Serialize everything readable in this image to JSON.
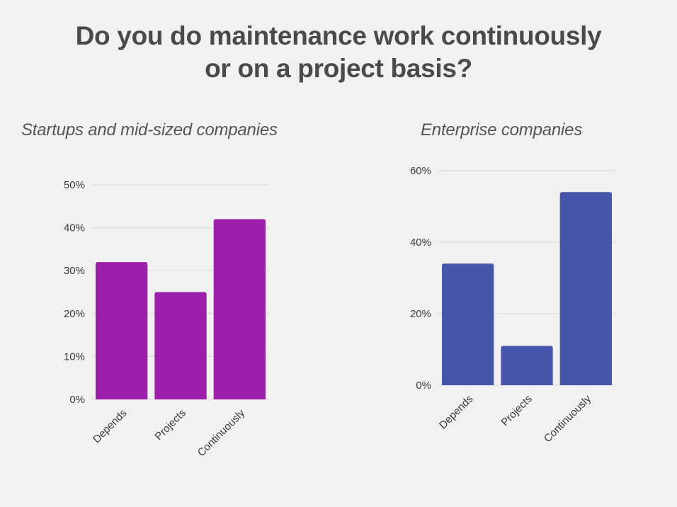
{
  "title": {
    "line1": "Do you do maintenance work continuously",
    "line2": "or on a project basis?"
  },
  "colors": {
    "left_bars": "#9b1fa8",
    "right_bars": "#4657ab",
    "grid": "#d8d8d8",
    "background": "#f1f1f1"
  },
  "chart_data": [
    {
      "type": "bar",
      "title": "Startups and mid-sized companies",
      "categories": [
        "Depends",
        "Projects",
        "Continuously"
      ],
      "values": [
        32,
        25,
        42
      ],
      "ylim": [
        0,
        50
      ],
      "yticks": [
        0,
        10,
        20,
        30,
        40,
        50
      ],
      "ytick_labels": [
        "0%",
        "10%",
        "20%",
        "30%",
        "40%",
        "50%"
      ],
      "xlabel": "",
      "ylabel": "",
      "grid": true
    },
    {
      "type": "bar",
      "title": "Enterprise companies",
      "categories": [
        "Depends",
        "Projects",
        "Continuously"
      ],
      "values": [
        34,
        11,
        54
      ],
      "ylim": [
        0,
        60
      ],
      "yticks": [
        0,
        20,
        40,
        60
      ],
      "ytick_labels": [
        "0%",
        "20%",
        "40%",
        "60%"
      ],
      "xlabel": "",
      "ylabel": "",
      "grid": true
    }
  ]
}
